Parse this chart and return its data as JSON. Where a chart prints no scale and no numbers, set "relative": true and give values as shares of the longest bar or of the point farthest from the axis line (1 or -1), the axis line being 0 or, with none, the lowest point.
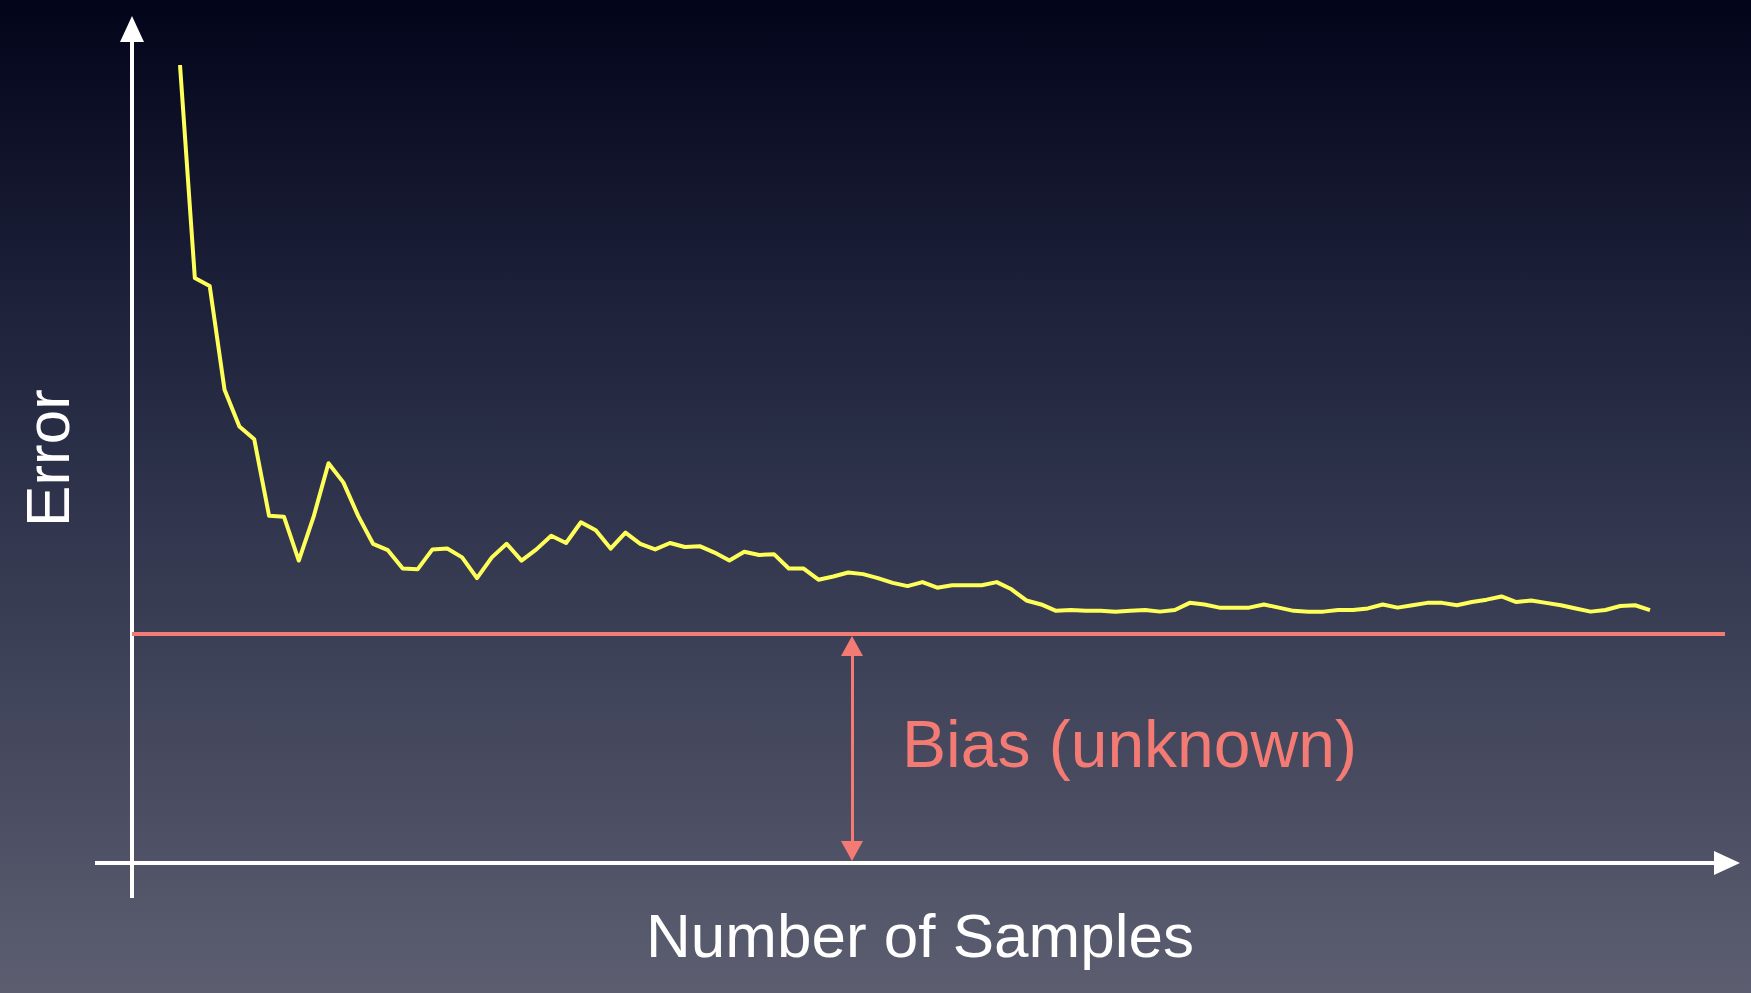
{
  "chart_data": {
    "type": "line",
    "relative": true,
    "xlabel": "Number of Samples",
    "ylabel": "Error",
    "marker": "none",
    "line_style": "solid",
    "categories": [
      null,
      null,
      null,
      null,
      null,
      null,
      null,
      null,
      null,
      null,
      null,
      null,
      null,
      null,
      null,
      null,
      null,
      null,
      null,
      null,
      null,
      null,
      null,
      null,
      null,
      null,
      null,
      null,
      null,
      null,
      null,
      null,
      null,
      null,
      null,
      null,
      null,
      null,
      null,
      null,
      null,
      null,
      null,
      null,
      null,
      null,
      null,
      null,
      null,
      null,
      null,
      null,
      null,
      null,
      null,
      null,
      null,
      null,
      null,
      null,
      null,
      null,
      null,
      null,
      null,
      null,
      null,
      null,
      null,
      null,
      null,
      null,
      null,
      null,
      null,
      null,
      null,
      null,
      null,
      null,
      null,
      null,
      null,
      null,
      null,
      null,
      null,
      null,
      null,
      null,
      null,
      null,
      null,
      null,
      null,
      null,
      null,
      null,
      null,
      null
    ],
    "series": [
      {
        "color": "#ffff5a",
        "values": [
          1.0,
          0.733,
          0.723,
          0.593,
          0.547,
          0.531,
          0.435,
          0.434,
          0.379,
          0.434,
          0.501,
          0.477,
          0.435,
          0.4,
          0.392,
          0.369,
          0.368,
          0.393,
          0.394,
          0.383,
          0.357,
          0.383,
          0.4,
          0.379,
          0.393,
          0.41,
          0.401,
          0.427,
          0.417,
          0.394,
          0.414,
          0.4,
          0.393,
          0.401,
          0.396,
          0.397,
          0.389,
          0.379,
          0.39,
          0.386,
          0.387,
          0.369,
          0.369,
          0.355,
          0.359,
          0.364,
          0.362,
          0.357,
          0.351,
          0.347,
          0.352,
          0.345,
          0.348,
          0.348,
          0.348,
          0.352,
          0.343,
          0.329,
          0.324,
          0.316,
          0.317,
          0.316,
          0.316,
          0.315,
          0.316,
          0.317,
          0.315,
          0.317,
          0.326,
          0.324,
          0.32,
          0.32,
          0.32,
          0.324,
          0.32,
          0.316,
          0.315,
          0.315,
          0.317,
          0.317,
          0.319,
          0.324,
          0.32,
          0.323,
          0.326,
          0.326,
          0.323,
          0.327,
          0.33,
          0.334,
          0.327,
          0.329,
          0.326,
          0.323,
          0.319,
          0.315,
          0.317,
          0.322,
          0.323,
          0.317
        ]
      }
    ],
    "ref_lines": [
      {
        "axis": "y",
        "value": 0.287,
        "label": "Bias (unknown)",
        "color": "#f47a74",
        "line_style": "solid"
      }
    ]
  }
}
